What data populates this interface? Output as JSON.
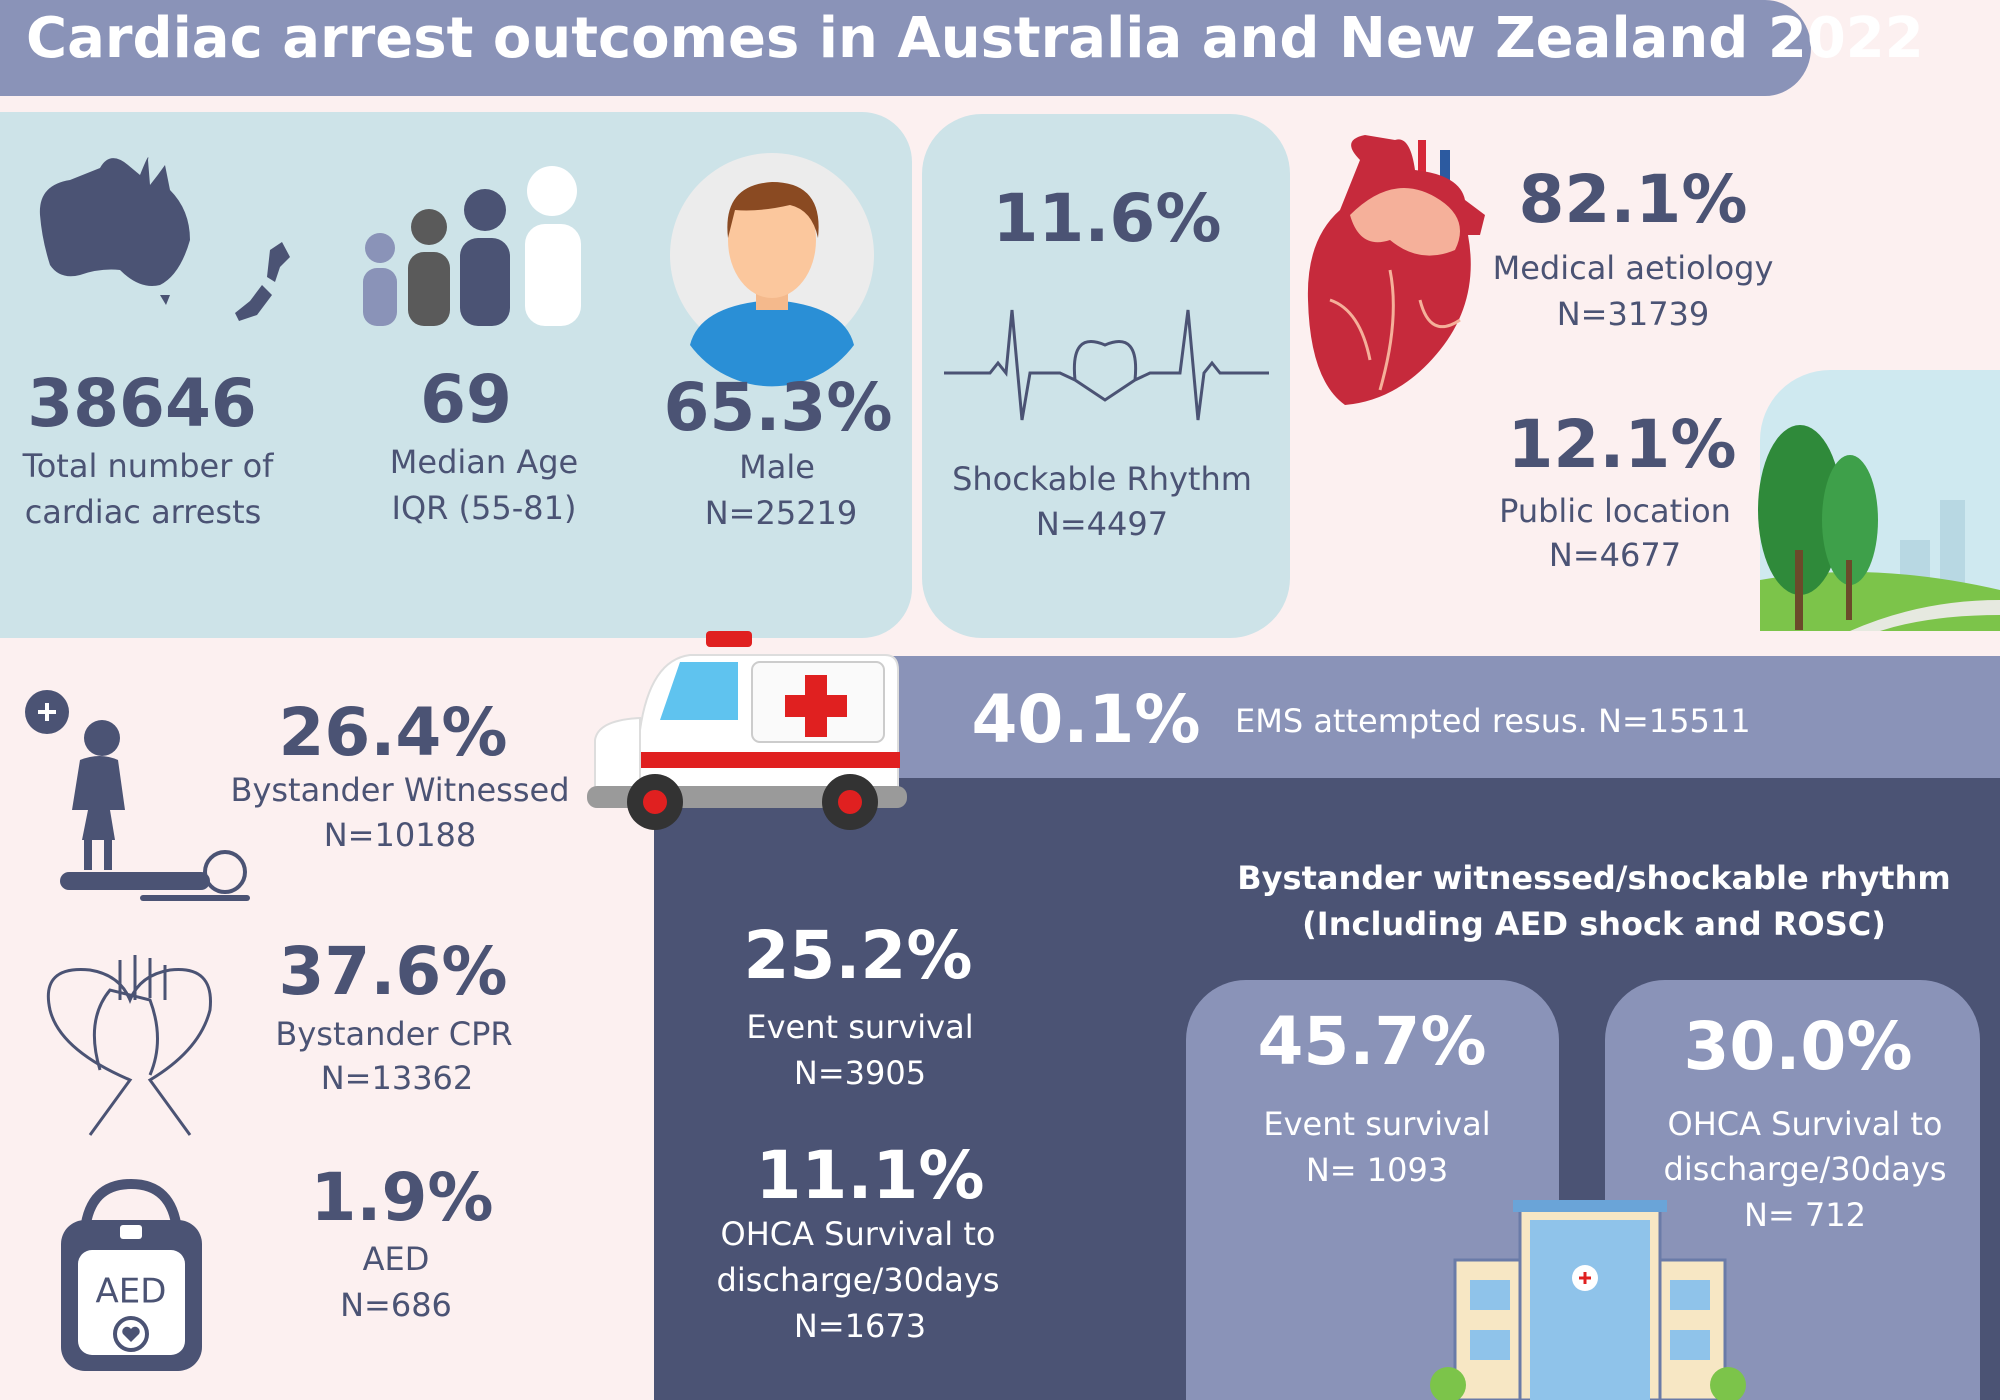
{
  "header": {
    "title": "Cardiac arrest outcomes in Australia and New Zealand 2022"
  },
  "demographics": [
    {
      "value": "38646",
      "lines": [
        "Total number of",
        "cardiac arrests"
      ]
    },
    {
      "value": "69",
      "lines": [
        "Median Age",
        "IQR (55-81)"
      ]
    },
    {
      "value": "65.3%",
      "lines": [
        "Male",
        "N=25219"
      ]
    }
  ],
  "shockable": {
    "value": "11.6%",
    "lines": [
      "Shockable Rhythm",
      "N=4497"
    ]
  },
  "aetiology": {
    "value": "82.1%",
    "lines": [
      "Medical aetiology",
      "N=31739"
    ]
  },
  "location": {
    "value": "12.1%",
    "lines": [
      "Public location",
      "N=4677"
    ]
  },
  "ems": {
    "value": "40.1%",
    "label": "EMS attempted resus. N=15511"
  },
  "bystander": [
    {
      "value": "26.4%",
      "lines": [
        "Bystander Witnessed",
        "N=10188"
      ]
    },
    {
      "value": "37.6%",
      "lines": [
        "Bystander CPR",
        "N=13362"
      ]
    },
    {
      "value": "1.9%",
      "lines": [
        "AED",
        "N=686"
      ]
    }
  ],
  "survival": [
    {
      "value": "25.2%",
      "lines": [
        "Event survival",
        "N=3905"
      ]
    },
    {
      "value": "11.1%",
      "lines": [
        "OHCA Survival to",
        "discharge/30days",
        "N=1673"
      ]
    }
  ],
  "subgroup": {
    "heading": [
      "Bystander witnessed/shockable rhythm",
      "(Including AED shock and ROSC)"
    ],
    "stats": [
      {
        "value": "45.7%",
        "lines": [
          "Event survival",
          "N= 1093"
        ]
      },
      {
        "value": "30.0%",
        "lines": [
          "OHCA Survival to",
          "discharge/30days",
          "N= 712"
        ]
      }
    ]
  }
}
